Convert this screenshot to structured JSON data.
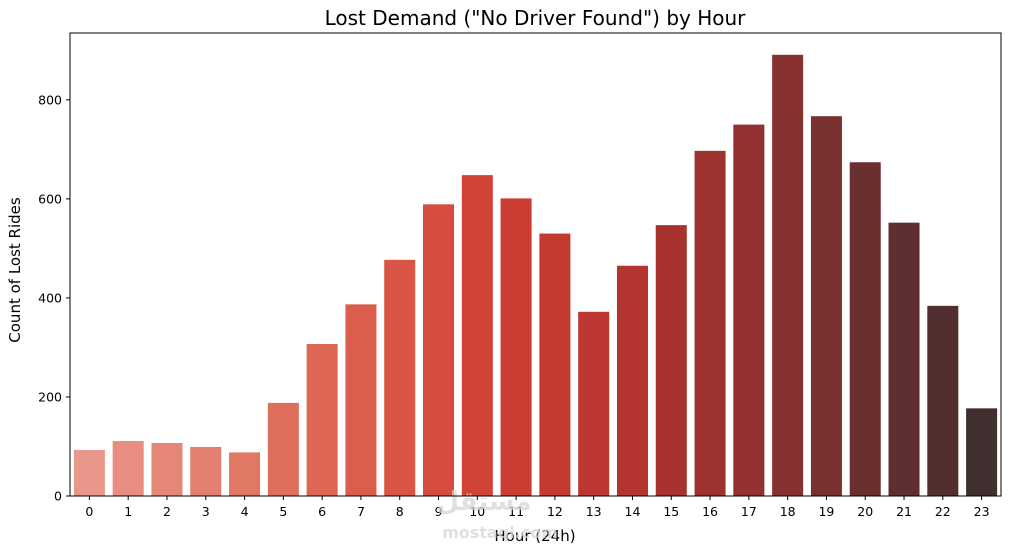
{
  "chart_data": {
    "type": "bar",
    "title": "Lost Demand (\"No Driver Found\") by Hour",
    "xlabel": "Hour (24h)",
    "ylabel": "Count of Lost Rides",
    "categories": [
      "0",
      "1",
      "2",
      "3",
      "4",
      "5",
      "6",
      "7",
      "8",
      "9",
      "10",
      "11",
      "12",
      "13",
      "14",
      "15",
      "16",
      "17",
      "18",
      "19",
      "20",
      "21",
      "22",
      "23"
    ],
    "values": [
      93,
      111,
      107,
      99,
      88,
      188,
      307,
      387,
      477,
      589,
      648,
      601,
      530,
      372,
      465,
      547,
      697,
      750,
      891,
      767,
      674,
      552,
      384,
      177
    ],
    "ylim": [
      0,
      935
    ],
    "yticks": [
      0,
      200,
      400,
      600,
      800
    ],
    "grid": false,
    "legend": "none",
    "palette": [
      "#e8978a",
      "#e78e80",
      "#e58777",
      "#e37f6e",
      "#e17865",
      "#df6f5c",
      "#dd6654",
      "#db5e4c",
      "#d95545",
      "#d64c3e",
      "#d24337",
      "#cc3e33",
      "#c43a31",
      "#bb3730",
      "#b2352f",
      "#a8332e",
      "#9d322e",
      "#92312f",
      "#86302f",
      "#793030",
      "#6c2f30",
      "#5f2e30",
      "#522e2f",
      "#3f2f2e"
    ]
  },
  "watermark": {
    "arabic": "مستقل",
    "latin": "mostaql.com"
  }
}
